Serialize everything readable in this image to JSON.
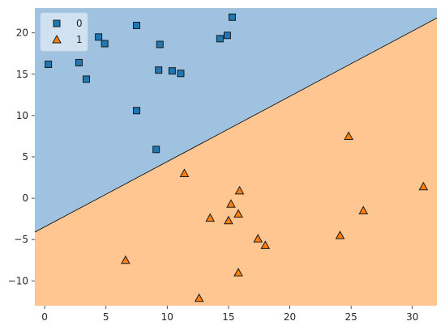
{
  "chart_data": {
    "type": "scatter",
    "title": "",
    "xlabel": "",
    "ylabel": "",
    "xlim": [
      -0.8,
      32.0
    ],
    "ylim": [
      -13.0,
      23.0
    ],
    "x_ticks": [
      0,
      5,
      10,
      15,
      20,
      25,
      30
    ],
    "y_ticks": [
      -10,
      -5,
      0,
      5,
      10,
      15,
      20
    ],
    "grid": false,
    "legend_position": "top-left",
    "decision_boundary": {
      "type": "line",
      "points": [
        [
          -0.8,
          -4.1
        ],
        [
          32.0,
          21.8
        ]
      ],
      "region_above_class": "0",
      "region_below_class": "1"
    },
    "colors": {
      "class_0_marker": "#1f77b4",
      "class_1_marker": "#ff7f0e",
      "class_0_region": "#9ec2df",
      "class_1_region": "#ffc692",
      "marker_edge": "#1a1a1a",
      "legend_bg": "#d8e6f2"
    },
    "series": [
      {
        "name": "0",
        "marker": "square",
        "points": [
          [
            0.3,
            16.2
          ],
          [
            2.8,
            16.4
          ],
          [
            3.4,
            14.4
          ],
          [
            4.4,
            19.5
          ],
          [
            4.9,
            18.7
          ],
          [
            7.5,
            20.9
          ],
          [
            7.5,
            10.6
          ],
          [
            9.1,
            5.9
          ],
          [
            9.3,
            15.5
          ],
          [
            9.4,
            18.6
          ],
          [
            10.4,
            15.4
          ],
          [
            11.1,
            15.1
          ],
          [
            14.3,
            19.3
          ],
          [
            14.9,
            19.7
          ],
          [
            15.3,
            21.9
          ]
        ]
      },
      {
        "name": "1",
        "marker": "triangle",
        "points": [
          [
            6.6,
            -7.5
          ],
          [
            11.4,
            3.0
          ],
          [
            12.6,
            -12.1
          ],
          [
            13.5,
            -2.4
          ],
          [
            15.0,
            -2.7
          ],
          [
            15.2,
            -0.7
          ],
          [
            15.8,
            -1.9
          ],
          [
            15.8,
            -9.0
          ],
          [
            15.9,
            0.9
          ],
          [
            17.4,
            -4.9
          ],
          [
            18.0,
            -5.7
          ],
          [
            24.1,
            -4.5
          ],
          [
            24.8,
            7.5
          ],
          [
            26.0,
            -1.5
          ],
          [
            30.9,
            1.4
          ]
        ]
      }
    ]
  }
}
